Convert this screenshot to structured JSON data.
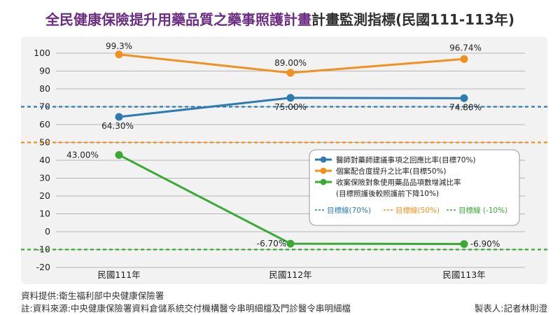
{
  "title": {
    "part1": "全民健康保險提升用藥品質之藥事照護計畫",
    "part2": "計畫監測指標(民國111-113年)"
  },
  "chart_data": {
    "type": "line",
    "categories": [
      "民國111年",
      "民國112年",
      "民國113年"
    ],
    "ylim": [
      -20,
      100
    ],
    "yticks": [
      -20,
      -10,
      0,
      10,
      20,
      30,
      40,
      50,
      60,
      70,
      80,
      90,
      100
    ],
    "grid": true,
    "series": [
      {
        "name": "醫師對藥師建議事項之回應比率(目標70%)",
        "color": "#2e7bb0",
        "values": [
          64.3,
          75.0,
          74.8
        ],
        "labels": [
          "64.30%",
          "75.00%",
          "74.80%"
        ]
      },
      {
        "name": "個案配合度提升之比率(目標50%)",
        "color": "#f0901e",
        "values": [
          99.3,
          89.0,
          96.74
        ],
        "labels": [
          "99.3%",
          "89.00%",
          "96.74%"
        ]
      },
      {
        "name": "收案保險對象使用藥品品項數增減比率 (目標照護後較照護前下降10%)",
        "name_line1": "收案保險對象使用藥品品項數增減比率",
        "name_line2": "(目標照護後較照護前下降10%)",
        "color": "#3aa935",
        "values": [
          43.0,
          -6.7,
          -6.9
        ],
        "labels": [
          "43.00%",
          "-6.70%",
          "-6.90%"
        ]
      }
    ],
    "target_lines": [
      {
        "name": "目標線(70%)",
        "value": 70,
        "color": "#2e7bb0"
      },
      {
        "name": "目標線(50%)",
        "value": 50,
        "color": "#f0901e"
      },
      {
        "name": "目標線 (-10%)",
        "value": -10,
        "color": "#3aa935"
      }
    ],
    "legend_position": "right"
  },
  "footer": {
    "source1": "資料提供:衛生福利部中央健康保險署",
    "source2": "註:資料來源:中央健康保險署資料倉儲系統交付機構醫令串明細檔及門診醫令串明細檔",
    "maker": "製表人:記者林則澄"
  }
}
